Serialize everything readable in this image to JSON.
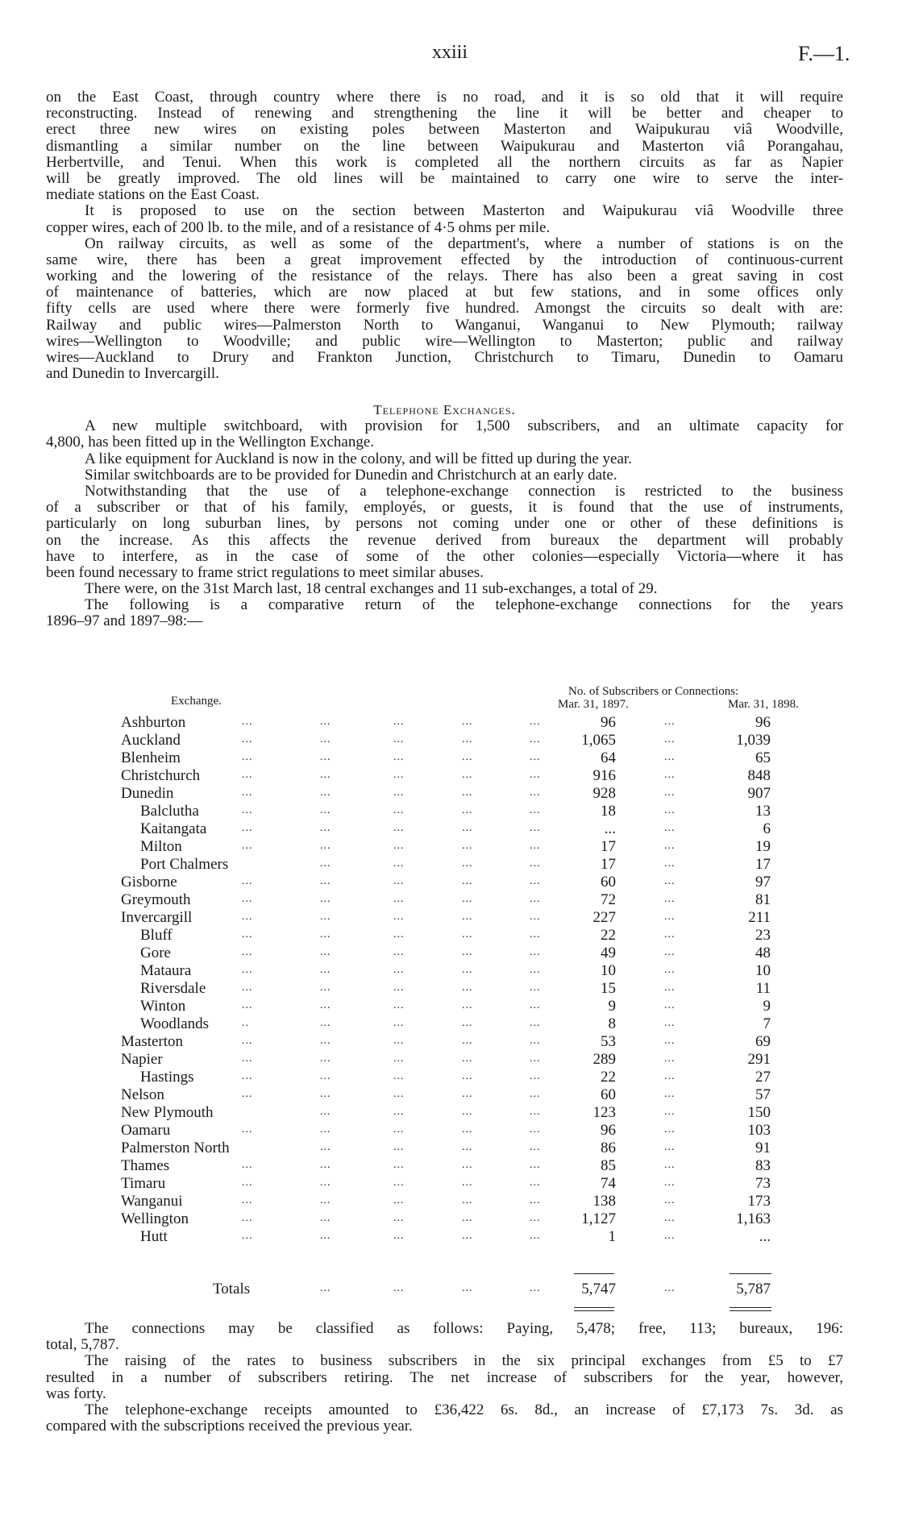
{
  "header": {
    "page_number": "xxiii",
    "doc_code": "F.—1."
  },
  "section1": [
    {
      "indent": false,
      "lines": [
        "on the East Coast, through country where there is no road, and it is so old that it will require",
        "reconstructing.  Instead of renewing and strengthening the line it will be better and cheaper to",
        "erect three new wires on existing poles between Masterton and Waipukurau viâ Woodville,",
        "dismantling a similar number on the line between Waipukurau and Masterton viâ Porangahau,",
        "Herbertville, and Tenui.   When this work is completed all the northern circuits as far as Napier",
        "will be greatly improved.  The old lines will be maintained to carry one wire to serve the inter-",
        "mediate stations on the East Coast."
      ]
    },
    {
      "indent": true,
      "lines": [
        "It is proposed to use on the section between Masterton and Waipukurau viâ Woodville three",
        "copper wires, each of 200 lb. to the mile, and of a resistance of 4·5 ohms per mile."
      ]
    },
    {
      "indent": true,
      "lines": [
        "On railway circuits, as well as some of the department's, where a number of stations is on the",
        "same wire, there has been a great improvement effected by the introduction of continuous-current",
        "working and the lowering of the resistance of the relays.  There has also been a great saving in cost",
        "of maintenance of batteries, which are now placed at but few stations, and in some offices only",
        "fifty cells are used where there were formerly five hundred.  Amongst the circuits so dealt with are:",
        "Railway and public wires—Palmerston North to Wanganui, Wanganui to New Plymouth; railway",
        "wires—Wellington to Woodville; and public wire—Wellington to Masterton; public and railway",
        "wires—Auckland to Drury and Frankton Junction, Christchurch to Timaru, Dunedin to Oamaru",
        "and Dunedin to Invercargill."
      ]
    }
  ],
  "heading": "Telephone Exchanges.",
  "section2": [
    {
      "indent": true,
      "lines": [
        "A new multiple switchboard, with provision for 1,500 subscribers, and an ultimate capacity for",
        "4,800, has been fitted up in the Wellington Exchange."
      ]
    },
    {
      "indent": true,
      "lines": [
        "A like equipment for Auckland is now in the colony, and will be fitted up during the year."
      ]
    },
    {
      "indent": true,
      "lines": [
        "Similar switchboards are to be provided for Dunedin and Christchurch at an early date."
      ]
    },
    {
      "indent": true,
      "lines": [
        "Notwithstanding that the use of a telephone-exchange connection is restricted to the business",
        "of a subscriber or that of his family, employés, or guests, it is found that the use of instruments,",
        "particularly on long suburban lines, by persons not coming under one or other of these definitions is",
        "on the increase.  As this affects the revenue derived from bureaux the department will probably",
        "have to interfere, as in the case of some of the other colonies—especially Victoria—where it has",
        "been found necessary to frame strict regulations to meet similar abuses."
      ]
    },
    {
      "indent": true,
      "lines": [
        "There were, on the 31st March last, 18 central exchanges and 11 sub-exchanges, a total of 29."
      ]
    },
    {
      "indent": true,
      "lines": [
        "The following is a comparative return of the telephone-exchange connections for the years",
        "1896–97 and 1897–98:—"
      ]
    }
  ],
  "table": {
    "col_exchange": "Exchange.",
    "col_group": "No. of Subscribers or Connections:",
    "col_1897": "Mar. 31, 1897.",
    "col_1898": "Mar. 31, 1898.",
    "leader": "...",
    "rows": [
      {
        "name": "Ashburton",
        "sub": false,
        "v1897": "96",
        "v1898": "96"
      },
      {
        "name": "Auckland",
        "sub": false,
        "v1897": "1,065",
        "v1898": "1,039"
      },
      {
        "name": "Blenheim",
        "sub": false,
        "v1897": "64",
        "v1898": "65"
      },
      {
        "name": "Christchurch",
        "sub": false,
        "v1897": "916",
        "v1898": "848"
      },
      {
        "name": "Dunedin",
        "sub": false,
        "v1897": "928",
        "v1898": "907"
      },
      {
        "name": "Balclutha",
        "sub": true,
        "v1897": "18",
        "v1898": "13"
      },
      {
        "name": "Kaitangata",
        "sub": true,
        "v1897": "...",
        "v1898": "6"
      },
      {
        "name": "Milton",
        "sub": true,
        "v1897": "17",
        "v1898": "19"
      },
      {
        "name": "Port Chalmers",
        "sub": true,
        "first_leader": "",
        "v1897": "17",
        "v1898": "17"
      },
      {
        "name": "Gisborne",
        "sub": false,
        "v1897": "60",
        "v1898": "97"
      },
      {
        "name": "Greymouth",
        "sub": false,
        "v1897": "72",
        "v1898": "81"
      },
      {
        "name": "Invercargill",
        "sub": false,
        "v1897": "227",
        "v1898": "211"
      },
      {
        "name": "Bluff",
        "sub": true,
        "v1897": "22",
        "v1898": "23"
      },
      {
        "name": "Gore",
        "sub": true,
        "v1897": "49",
        "v1898": "48"
      },
      {
        "name": "Mataura",
        "sub": true,
        "v1897": "10",
        "v1898": "10"
      },
      {
        "name": "Riversdale",
        "sub": true,
        "v1897": "15",
        "v1898": "11"
      },
      {
        "name": "Winton",
        "sub": true,
        "v1897": "9",
        "v1898": "9"
      },
      {
        "name": "Woodlands",
        "sub": true,
        "first_leader": "..",
        "v1897": "8",
        "v1898": "7"
      },
      {
        "name": "Masterton",
        "sub": false,
        "v1897": "53",
        "v1898": "69"
      },
      {
        "name": "Napier",
        "sub": false,
        "v1897": "289",
        "v1898": "291"
      },
      {
        "name": "Hastings",
        "sub": true,
        "v1897": "22",
        "v1898": "27"
      },
      {
        "name": "Nelson",
        "sub": false,
        "v1897": "60",
        "v1898": "57"
      },
      {
        "name": "New Plymouth",
        "sub": false,
        "first_leader": "",
        "v1897": "123",
        "v1898": "150"
      },
      {
        "name": "Oamaru",
        "sub": false,
        "v1897": "96",
        "v1898": "103"
      },
      {
        "name": "Palmerston North",
        "sub": false,
        "first_leader": "",
        "v1897": "86",
        "v1898": "91"
      },
      {
        "name": "Thames",
        "sub": false,
        "v1897": "85",
        "v1898": "83"
      },
      {
        "name": "Timaru",
        "sub": false,
        "v1897": "74",
        "v1898": "73"
      },
      {
        "name": "Wanganui",
        "sub": false,
        "v1897": "138",
        "v1898": "173"
      },
      {
        "name": "Wellington",
        "sub": false,
        "v1897": "1,127",
        "v1898": "1,163"
      },
      {
        "name": "Hutt",
        "sub": true,
        "v1897": "1",
        "v1898": "..."
      }
    ],
    "totals": {
      "label": "Totals",
      "v1897": "5,747",
      "v1898": "5,787"
    }
  },
  "section3": [
    {
      "indent": true,
      "lines": [
        "The connections may be classified as follows: Paying, 5,478; free, 113; bureaux, 196:",
        "total, 5,787."
      ]
    },
    {
      "indent": true,
      "lines": [
        "The raising of the rates to business subscribers in the six principal exchanges from £5 to £7",
        "resulted in a number of subscribers retiring.  The net increase of subscribers for the year, however,",
        "was forty."
      ]
    },
    {
      "indent": true,
      "lines": [
        "The telephone-exchange receipts amounted to £36,422 6s. 8d., an increase of £7,173 7s. 3d. as",
        "compared with the subscriptions received the previous year."
      ]
    }
  ]
}
